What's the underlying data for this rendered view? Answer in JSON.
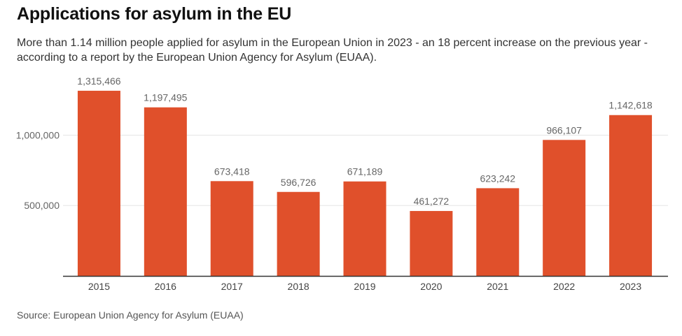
{
  "title": "Applications for asylum in the EU",
  "subtitle": "More than 1.14 million people applied for asylum in the European Union in 2023 - an 18 percent increase on the previous year - according to a report by the European Union Agency for Asylum (EUAA).",
  "source": "Source: European Union Agency for Asylum (EUAA)",
  "colors": {
    "bar": "#e0502b",
    "grid": "#e6e6e6",
    "axis": "#333333",
    "label": "#666666"
  },
  "chart_data": {
    "type": "bar",
    "categories": [
      "2015",
      "2016",
      "2017",
      "2018",
      "2019",
      "2020",
      "2021",
      "2022",
      "2023"
    ],
    "values": [
      1315466,
      1197495,
      673418,
      596726,
      671189,
      461272,
      623242,
      966107,
      1142618
    ],
    "value_labels": [
      "1,315,466",
      "1,197,495",
      "673,418",
      "596,726",
      "671,189",
      "461,272",
      "623,242",
      "966,107",
      "1,142,618"
    ],
    "yticks": [
      500000,
      1000000
    ],
    "ytick_labels": [
      "500,000",
      "1,000,000"
    ],
    "ylim": [
      0,
      1320000
    ],
    "xlabel": "",
    "ylabel": "",
    "grid": true
  }
}
